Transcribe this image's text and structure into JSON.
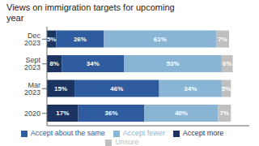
{
  "chart_data": {
    "type": "bar",
    "orientation": "horizontal",
    "stacked": true,
    "title": "Views on immigration targets for upcoming\nyear",
    "categories": [
      "Dec 2023",
      "Sept 2023",
      "Mar 2023",
      "2020"
    ],
    "series": [
      {
        "name": "Accept more",
        "color": "#1c3461",
        "values": [
          5,
          8,
          15,
          17
        ],
        "value_labels": [
          "5%",
          "8%",
          "15%",
          "17%"
        ]
      },
      {
        "name": "Accept about the same",
        "color": "#2e5c9e",
        "values": [
          26,
          34,
          46,
          36
        ],
        "value_labels": [
          "26%",
          "34%",
          "46%",
          "36%"
        ]
      },
      {
        "name": "Accept fewer",
        "color": "#8ab4d4",
        "values": [
          61,
          53,
          34,
          40
        ],
        "value_labels": [
          "61%",
          "53%",
          "34%",
          "40%"
        ]
      },
      {
        "name": "Unsure",
        "color": "#c0bfbf",
        "values": [
          7,
          6,
          5,
          7
        ],
        "value_labels": [
          "7%",
          "6%",
          "5%",
          "7%"
        ]
      }
    ],
    "xlim": [
      0,
      110
    ],
    "data_labels": true,
    "tick_labels": "y",
    "grid": false,
    "legend": "bottom"
  }
}
